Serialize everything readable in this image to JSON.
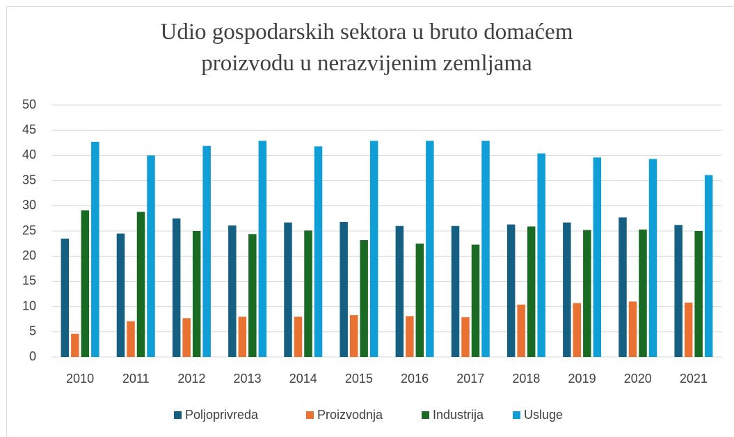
{
  "chart_data": {
    "type": "bar",
    "title": "Udio gospodarskih sektora u bruto domaćem proizvodu u nerazvijenim zemljama",
    "categories": [
      "2010",
      "2011",
      "2012",
      "2013",
      "2014",
      "2015",
      "2016",
      "2017",
      "2018",
      "2019",
      "2020",
      "2021"
    ],
    "series": [
      {
        "name": "Poljoprivreda",
        "color": "#156082",
        "values": [
          23.5,
          24.5,
          27.5,
          26.1,
          26.7,
          26.8,
          26.0,
          26.0,
          26.3,
          26.7,
          27.7,
          26.2
        ]
      },
      {
        "name": "Proizvodnja",
        "color": "#e97132",
        "values": [
          4.6,
          7.1,
          7.7,
          8.0,
          8.0,
          8.3,
          8.1,
          7.9,
          10.4,
          10.7,
          11.0,
          10.8
        ]
      },
      {
        "name": "Industrija",
        "color": "#196b24",
        "values": [
          29.1,
          28.8,
          25.0,
          24.4,
          25.1,
          23.2,
          22.5,
          22.3,
          25.9,
          25.2,
          25.3,
          25.0
        ]
      },
      {
        "name": "Usluge",
        "color": "#0f9ed5",
        "values": [
          42.7,
          40.0,
          41.9,
          42.9,
          41.8,
          42.9,
          42.9,
          42.9,
          40.4,
          39.6,
          39.3,
          36.1
        ]
      }
    ],
    "ylim": [
      0,
      50
    ],
    "yticks": [
      0,
      5,
      10,
      15,
      20,
      25,
      30,
      35,
      40,
      45,
      50
    ],
    "grid": true,
    "legend": "bottom"
  }
}
